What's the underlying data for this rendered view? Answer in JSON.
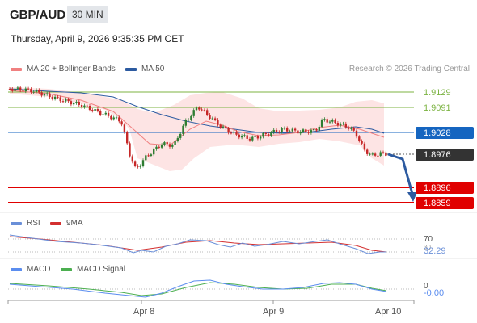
{
  "header": {
    "symbol": "GBP/AUD",
    "timeframe": "30 MIN",
    "datetime": "Thursday, April 9, 2026 9:35:35 PM CET"
  },
  "legend": {
    "ma20_label": "MA 20 + Bollinger Bands",
    "ma50_label": "MA 50",
    "rsi_label": "RSI",
    "rsi_ma_label": "9MA",
    "macd_label": "MACD",
    "macd_signal_label": "MACD Signal"
  },
  "copyright": "Research © 2026 Trading Central",
  "colors": {
    "resistance": "#7cb342",
    "pivot": "#1565c0",
    "support": "#e00000",
    "current": "#333333",
    "ma20": "#f08080",
    "ma50": "#2c5aa0",
    "band": "#fde4e4",
    "up_candle": "#2e7d32",
    "down_candle": "#c62828",
    "rsi": "#6a8fd8",
    "rsi_ma": "#d32f2f",
    "macd": "#5b8def",
    "macd_signal": "#4caf50",
    "arrow": "#2c5aa0"
  },
  "price_levels": [
    {
      "label": "1.9129",
      "kind": "resistance"
    },
    {
      "label": "1.9091",
      "kind": "resistance"
    },
    {
      "label": "1.9028",
      "kind": "pivot"
    },
    {
      "label": "1.8976",
      "kind": "current"
    },
    {
      "label": "1.8896",
      "kind": "support"
    },
    {
      "label": "1.8859",
      "kind": "support"
    }
  ],
  "rsi_panel": {
    "label_70": "70",
    "label_30": "30",
    "value": "32.29"
  },
  "macd_panel": {
    "label_zero": "0",
    "value": "-0.00"
  },
  "x_axis": {
    "labels": [
      "Apr 8",
      "Apr 9",
      "Apr 10"
    ]
  }
}
